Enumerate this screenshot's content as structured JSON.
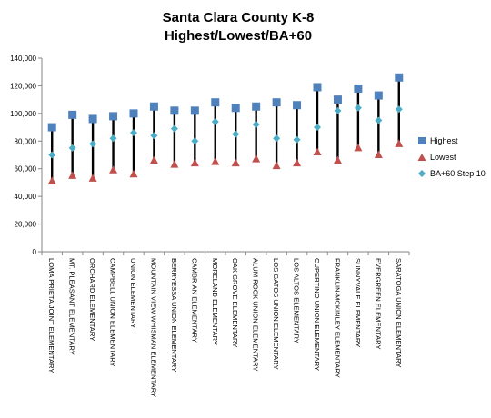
{
  "chart_data": {
    "type": "scatter",
    "title": "Santa Clara County K-8",
    "subtitle": "Highest/Lowest/BA+60",
    "xlabel": "",
    "ylabel": "",
    "ylim": [
      0,
      140000
    ],
    "yticks": [
      "0",
      "20,000",
      "40,000",
      "60,000",
      "80,000",
      "100,000",
      "120,000",
      "140,000"
    ],
    "categories": [
      "LOMA PRIETA JOINT ELEMENTARY",
      "MT. PLEASANT ELEMENTARY",
      "ORCHARD ELEMENTARY",
      "CAMPBELL UNION ELEMENTARY",
      "UNION ELEMENTARY",
      "MOUNTAIN VIEW WHISMAN ELEMENTARY",
      "BERRYESSA UNION ELEMENTARY",
      "CAMBRIAN ELEMENTARY",
      "MORELAND ELEMENTARY",
      "OAK GROVE ELEMENTARY",
      "ALUM ROCK UNION ELEMENTARY",
      "LOS GATOS UNION ELEMENTARY",
      "LOS ALTOS ELEMENTARY",
      "CUPERTINO UNION ELEMENTARY",
      "FRANKLIN-MCKINLEY ELEMENTARY",
      "SUNNYVALE ELEMENTARY",
      "EVERGREEN ELEMENTARY",
      "SARATOGA UNION ELEMENTARY"
    ],
    "series": [
      {
        "name": "Highest",
        "color": "#4f81bd",
        "marker": "square",
        "values": [
          90000,
          99000,
          96000,
          98000,
          100000,
          105000,
          102000,
          102000,
          108000,
          104000,
          105000,
          108000,
          106000,
          119000,
          110000,
          118000,
          113000,
          126000
        ]
      },
      {
        "name": "Lowest",
        "color": "#c0504d",
        "marker": "triangle",
        "values": [
          51000,
          55000,
          53000,
          59000,
          56000,
          66000,
          63000,
          64000,
          65000,
          64000,
          67000,
          62000,
          64000,
          72000,
          66000,
          75000,
          70000,
          78000
        ]
      },
      {
        "name": "BA+60 Step 10",
        "color": "#4bacc6",
        "marker": "diamond",
        "values": [
          70000,
          75000,
          78000,
          82000,
          86000,
          84000,
          89000,
          80000,
          94000,
          85000,
          92000,
          82000,
          81000,
          90000,
          102000,
          104000,
          95000,
          103000
        ]
      }
    ],
    "range_lines": true,
    "grid": false,
    "legend": "right"
  }
}
